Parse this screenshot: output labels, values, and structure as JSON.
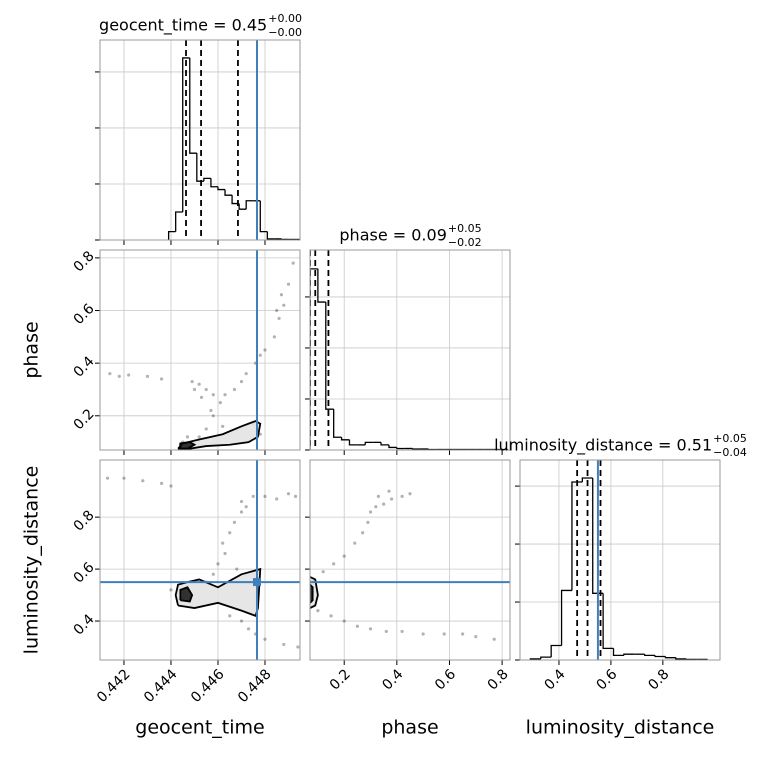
{
  "chart_data": [
    {
      "type": "histogram",
      "title": "geocent_time = 0.45",
      "title_upper": "+0.00",
      "title_lower": "−0.00",
      "bins": [
        0.4439,
        0.4442,
        0.4445,
        0.4448,
        0.4451,
        0.4454,
        0.4457,
        0.446,
        0.4463,
        0.4466,
        0.4469,
        0.4472,
        0.4475,
        0.4478,
        0.4481,
        0.4484,
        0.4487,
        0.449,
        0.4493,
        0.4496,
        0.4499
      ],
      "values": [
        0.15,
        0.5,
        3.25,
        1.55,
        1.05,
        1.1,
        0.95,
        0.9,
        0.8,
        0.65,
        0.55,
        0.7,
        0.7,
        0.15,
        0.02,
        0.02,
        0.01,
        0.01,
        0.01,
        0.01
      ],
      "quantiles": [
        0.44464,
        0.44528,
        0.44685
      ],
      "truth": 0.44766,
      "truth_color": "#3f7fba",
      "color": "#000000",
      "xlim": [
        0.44098,
        0.44949
      ],
      "ylim": [
        0,
        3.57
      ],
      "xticks": [
        0.442,
        0.444,
        0.446,
        0.448
      ],
      "yticks": [
        0,
        1,
        2,
        3
      ],
      "grid": true
    },
    {
      "type": "scatter",
      "ylabel": "phase",
      "x": [
        0.4452,
        0.4455,
        0.4458,
        0.4461,
        0.4458,
        0.4455,
        0.4452,
        0.4449,
        0.445,
        0.4463,
        0.4467,
        0.447,
        0.4472,
        0.4476,
        0.4478,
        0.448,
        0.4484,
        0.4486,
        0.4488,
        0.449,
        0.4492,
        0.4487,
        0.4485,
        0.4414,
        0.4418,
        0.4422,
        0.443,
        0.4436,
        0.4445,
        0.4447,
        0.4444,
        0.4462,
        0.4468,
        0.4475,
        0.4478,
        0.4457,
        0.4453
      ],
      "y": [
        0.12,
        0.15,
        0.2,
        0.25,
        0.28,
        0.3,
        0.32,
        0.33,
        0.3,
        0.28,
        0.3,
        0.33,
        0.36,
        0.4,
        0.43,
        0.45,
        0.5,
        0.57,
        0.62,
        0.7,
        0.78,
        0.66,
        0.6,
        0.36,
        0.35,
        0.355,
        0.35,
        0.34,
        0.1,
        0.12,
        0.09,
        0.16,
        0.15,
        0.17,
        0.13,
        0.22,
        0.27
      ],
      "contours": [
        {
          "x": [
            0.4443,
            0.4448,
            0.4455,
            0.4465,
            0.4473,
            0.4477,
            0.4478,
            0.4476,
            0.447,
            0.4462,
            0.4452,
            0.4445,
            0.4443
          ],
          "y": [
            0.075,
            0.075,
            0.085,
            0.09,
            0.1,
            0.12,
            0.17,
            0.18,
            0.16,
            0.13,
            0.11,
            0.095,
            0.075
          ]
        },
        {
          "x": [
            0.4444,
            0.4447,
            0.445,
            0.4448,
            0.4444,
            0.4444
          ],
          "y": [
            0.075,
            0.075,
            0.09,
            0.1,
            0.095,
            0.075
          ]
        }
      ],
      "truth_x": 0.44766,
      "truth_color": "#3f7fba",
      "xlim": [
        0.44098,
        0.44949
      ],
      "ylim": [
        0.07,
        0.83
      ],
      "xticks": [
        0.442,
        0.444,
        0.446,
        0.448
      ],
      "yticks": [
        0.2,
        0.4,
        0.6,
        0.8
      ],
      "grid": true
    },
    {
      "type": "histogram",
      "title": "phase = 0.09",
      "title_upper": "+0.05",
      "title_lower": "−0.02",
      "bins": [
        0.07,
        0.1,
        0.13,
        0.16,
        0.19,
        0.22,
        0.25,
        0.28,
        0.31,
        0.34,
        0.37,
        0.4,
        0.43,
        0.46,
        0.49,
        0.52,
        0.55,
        0.58,
        0.61,
        0.64,
        0.67,
        0.7,
        0.73,
        0.76,
        0.79,
        0.82
      ],
      "values": [
        3.55,
        2.9,
        0.8,
        0.25,
        0.2,
        0.1,
        0.1,
        0.15,
        0.15,
        0.1,
        0.05,
        0.03,
        0.03,
        0.02,
        0.02,
        0.01,
        0.01,
        0.01,
        0.01,
        0.01,
        0.01,
        0.01,
        0.01,
        0.01,
        0.01
      ],
      "quantiles": [
        0.07,
        0.09,
        0.14
      ],
      "color": "#000000",
      "xlim": [
        0.07,
        0.83
      ],
      "ylim": [
        0,
        3.92
      ],
      "xticks": [
        0.2,
        0.4,
        0.6,
        0.8
      ],
      "yticks": [
        0,
        1,
        2,
        3
      ],
      "grid": true
    },
    {
      "type": "scatter",
      "xlabel": "geocent_time",
      "ylabel": "luminosity_distance",
      "x": [
        0.4413,
        0.442,
        0.4428,
        0.4436,
        0.444,
        0.446,
        0.4463,
        0.4462,
        0.4465,
        0.4467,
        0.447,
        0.4472,
        0.447,
        0.4475,
        0.448,
        0.4485,
        0.449,
        0.4493,
        0.4465,
        0.447,
        0.4473,
        0.4476,
        0.448,
        0.4488,
        0.4494,
        0.444,
        0.4455,
        0.4468,
        0.4458
      ],
      "y": [
        0.95,
        0.95,
        0.94,
        0.93,
        0.92,
        0.62,
        0.66,
        0.7,
        0.74,
        0.78,
        0.82,
        0.84,
        0.86,
        0.88,
        0.88,
        0.87,
        0.89,
        0.88,
        0.42,
        0.4,
        0.37,
        0.35,
        0.33,
        0.31,
        0.3,
        0.52,
        0.55,
        0.6,
        0.58
      ],
      "contours": [
        {
          "x": [
            0.4443,
            0.445,
            0.446,
            0.447,
            0.4476,
            0.4477,
            0.4478,
            0.447,
            0.446,
            0.4452,
            0.4447,
            0.4443,
            0.4442,
            0.4443
          ],
          "y": [
            0.46,
            0.45,
            0.47,
            0.44,
            0.42,
            0.45,
            0.6,
            0.58,
            0.53,
            0.56,
            0.55,
            0.54,
            0.5,
            0.46
          ]
        },
        {
          "x": [
            0.4444,
            0.4448,
            0.4449,
            0.4447,
            0.4444,
            0.4444
          ],
          "y": [
            0.48,
            0.475,
            0.5,
            0.53,
            0.52,
            0.48
          ]
        }
      ],
      "truth_x": 0.44766,
      "truth_y": 0.55,
      "truth_color": "#3f7fba",
      "xlim": [
        0.44098,
        0.44949
      ],
      "ylim": [
        0.25,
        1.02
      ],
      "xticks": [
        0.442,
        0.444,
        0.446,
        0.448
      ],
      "yticks": [
        0.4,
        0.6,
        0.8
      ],
      "grid": true
    },
    {
      "type": "scatter",
      "xlabel": "phase",
      "x": [
        0.08,
        0.12,
        0.16,
        0.2,
        0.24,
        0.27,
        0.29,
        0.3,
        0.32,
        0.35,
        0.38,
        0.42,
        0.45,
        0.33,
        0.37,
        0.1,
        0.15,
        0.2,
        0.25,
        0.3,
        0.36,
        0.42,
        0.5,
        0.58,
        0.65,
        0.7,
        0.77
      ],
      "y": [
        0.56,
        0.59,
        0.62,
        0.65,
        0.7,
        0.74,
        0.78,
        0.82,
        0.84,
        0.85,
        0.87,
        0.88,
        0.89,
        0.88,
        0.9,
        0.44,
        0.42,
        0.4,
        0.38,
        0.37,
        0.36,
        0.36,
        0.35,
        0.35,
        0.35,
        0.34,
        0.33
      ],
      "contours": [
        {
          "x": [
            0.07,
            0.09,
            0.1,
            0.09,
            0.07
          ],
          "y": [
            0.45,
            0.46,
            0.5,
            0.56,
            0.57
          ]
        },
        {
          "x": [
            0.07,
            0.08,
            0.08,
            0.07
          ],
          "y": [
            0.47,
            0.48,
            0.53,
            0.54
          ]
        }
      ],
      "truth_y": 0.55,
      "truth_color": "#3f7fba",
      "xlim": [
        0.07,
        0.83
      ],
      "ylim": [
        0.25,
        1.02
      ],
      "xticks": [
        0.2,
        0.4,
        0.6,
        0.8
      ],
      "yticks": [
        0.4,
        0.6,
        0.8
      ],
      "grid": true
    },
    {
      "type": "histogram",
      "xlabel": "luminosity_distance",
      "title": "luminosity_distance = 0.51",
      "title_upper": "+0.05",
      "title_lower": "−0.04",
      "bins": [
        0.29,
        0.33,
        0.37,
        0.41,
        0.45,
        0.49,
        0.53,
        0.57,
        0.61,
        0.65,
        0.69,
        0.73,
        0.77,
        0.81,
        0.85,
        0.89,
        0.93,
        0.97
      ],
      "values": [
        0.02,
        0.05,
        0.25,
        1.2,
        3.07,
        3.14,
        1.15,
        0.2,
        0.08,
        0.1,
        0.1,
        0.08,
        0.06,
        0.04,
        0.02,
        0.01,
        0.01
      ],
      "quantiles": [
        0.47,
        0.51,
        0.56
      ],
      "truth": 0.55,
      "truth_color": "#3f7fba",
      "color": "#000000",
      "xlim": [
        0.25,
        1.02
      ],
      "ylim": [
        0,
        3.45
      ],
      "xticks": [
        0.4,
        0.6,
        0.8
      ],
      "yticks": [
        0,
        1,
        2,
        3
      ],
      "grid": true
    }
  ]
}
